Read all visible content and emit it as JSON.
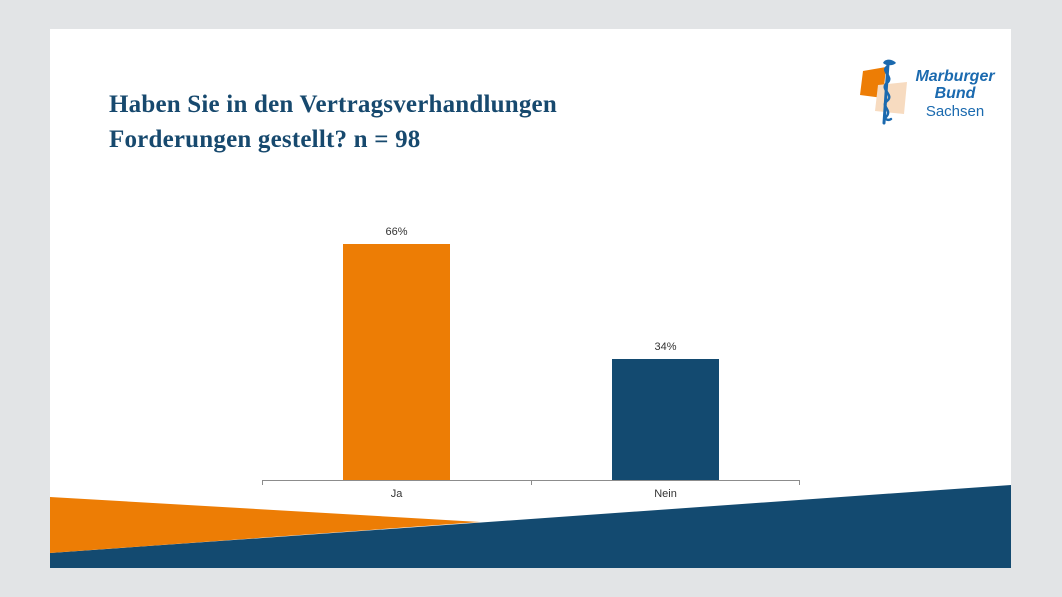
{
  "page": {
    "background": "#E2E4E6"
  },
  "slide": {
    "background": "#FFFFFF"
  },
  "title": {
    "lines": [
      "Haben Sie in den Vertragsverhandlungen",
      "Forderungen gestellt? n = 98"
    ],
    "color": "#17496E"
  },
  "logo": {
    "name": "Marburger Bund Sachsen",
    "line1": "Marburger",
    "line2": "Bund",
    "line3": "Sachsen",
    "text_color": "#1B6AAF",
    "staff_color": "#1B69AE",
    "orange": "#ED7D05",
    "peach": "#F7DBC0"
  },
  "chart_data": {
    "type": "bar",
    "title": "Haben Sie in den Vertragsverhandlungen Forderungen gestellt? n = 98",
    "sample_size_label": "n = 98",
    "categories": [
      "Ja",
      "Nein"
    ],
    "values": [
      66,
      34
    ],
    "value_labels": [
      "66%",
      "34%"
    ],
    "colors": [
      "#ED7D05",
      "#134A70"
    ],
    "unit": "percent",
    "grid": false,
    "legend": "none",
    "axis_color": "#8C8C8C",
    "label_color": "#333333"
  },
  "footer": {
    "orange": "#ED7D05",
    "blue": "#134A70"
  }
}
